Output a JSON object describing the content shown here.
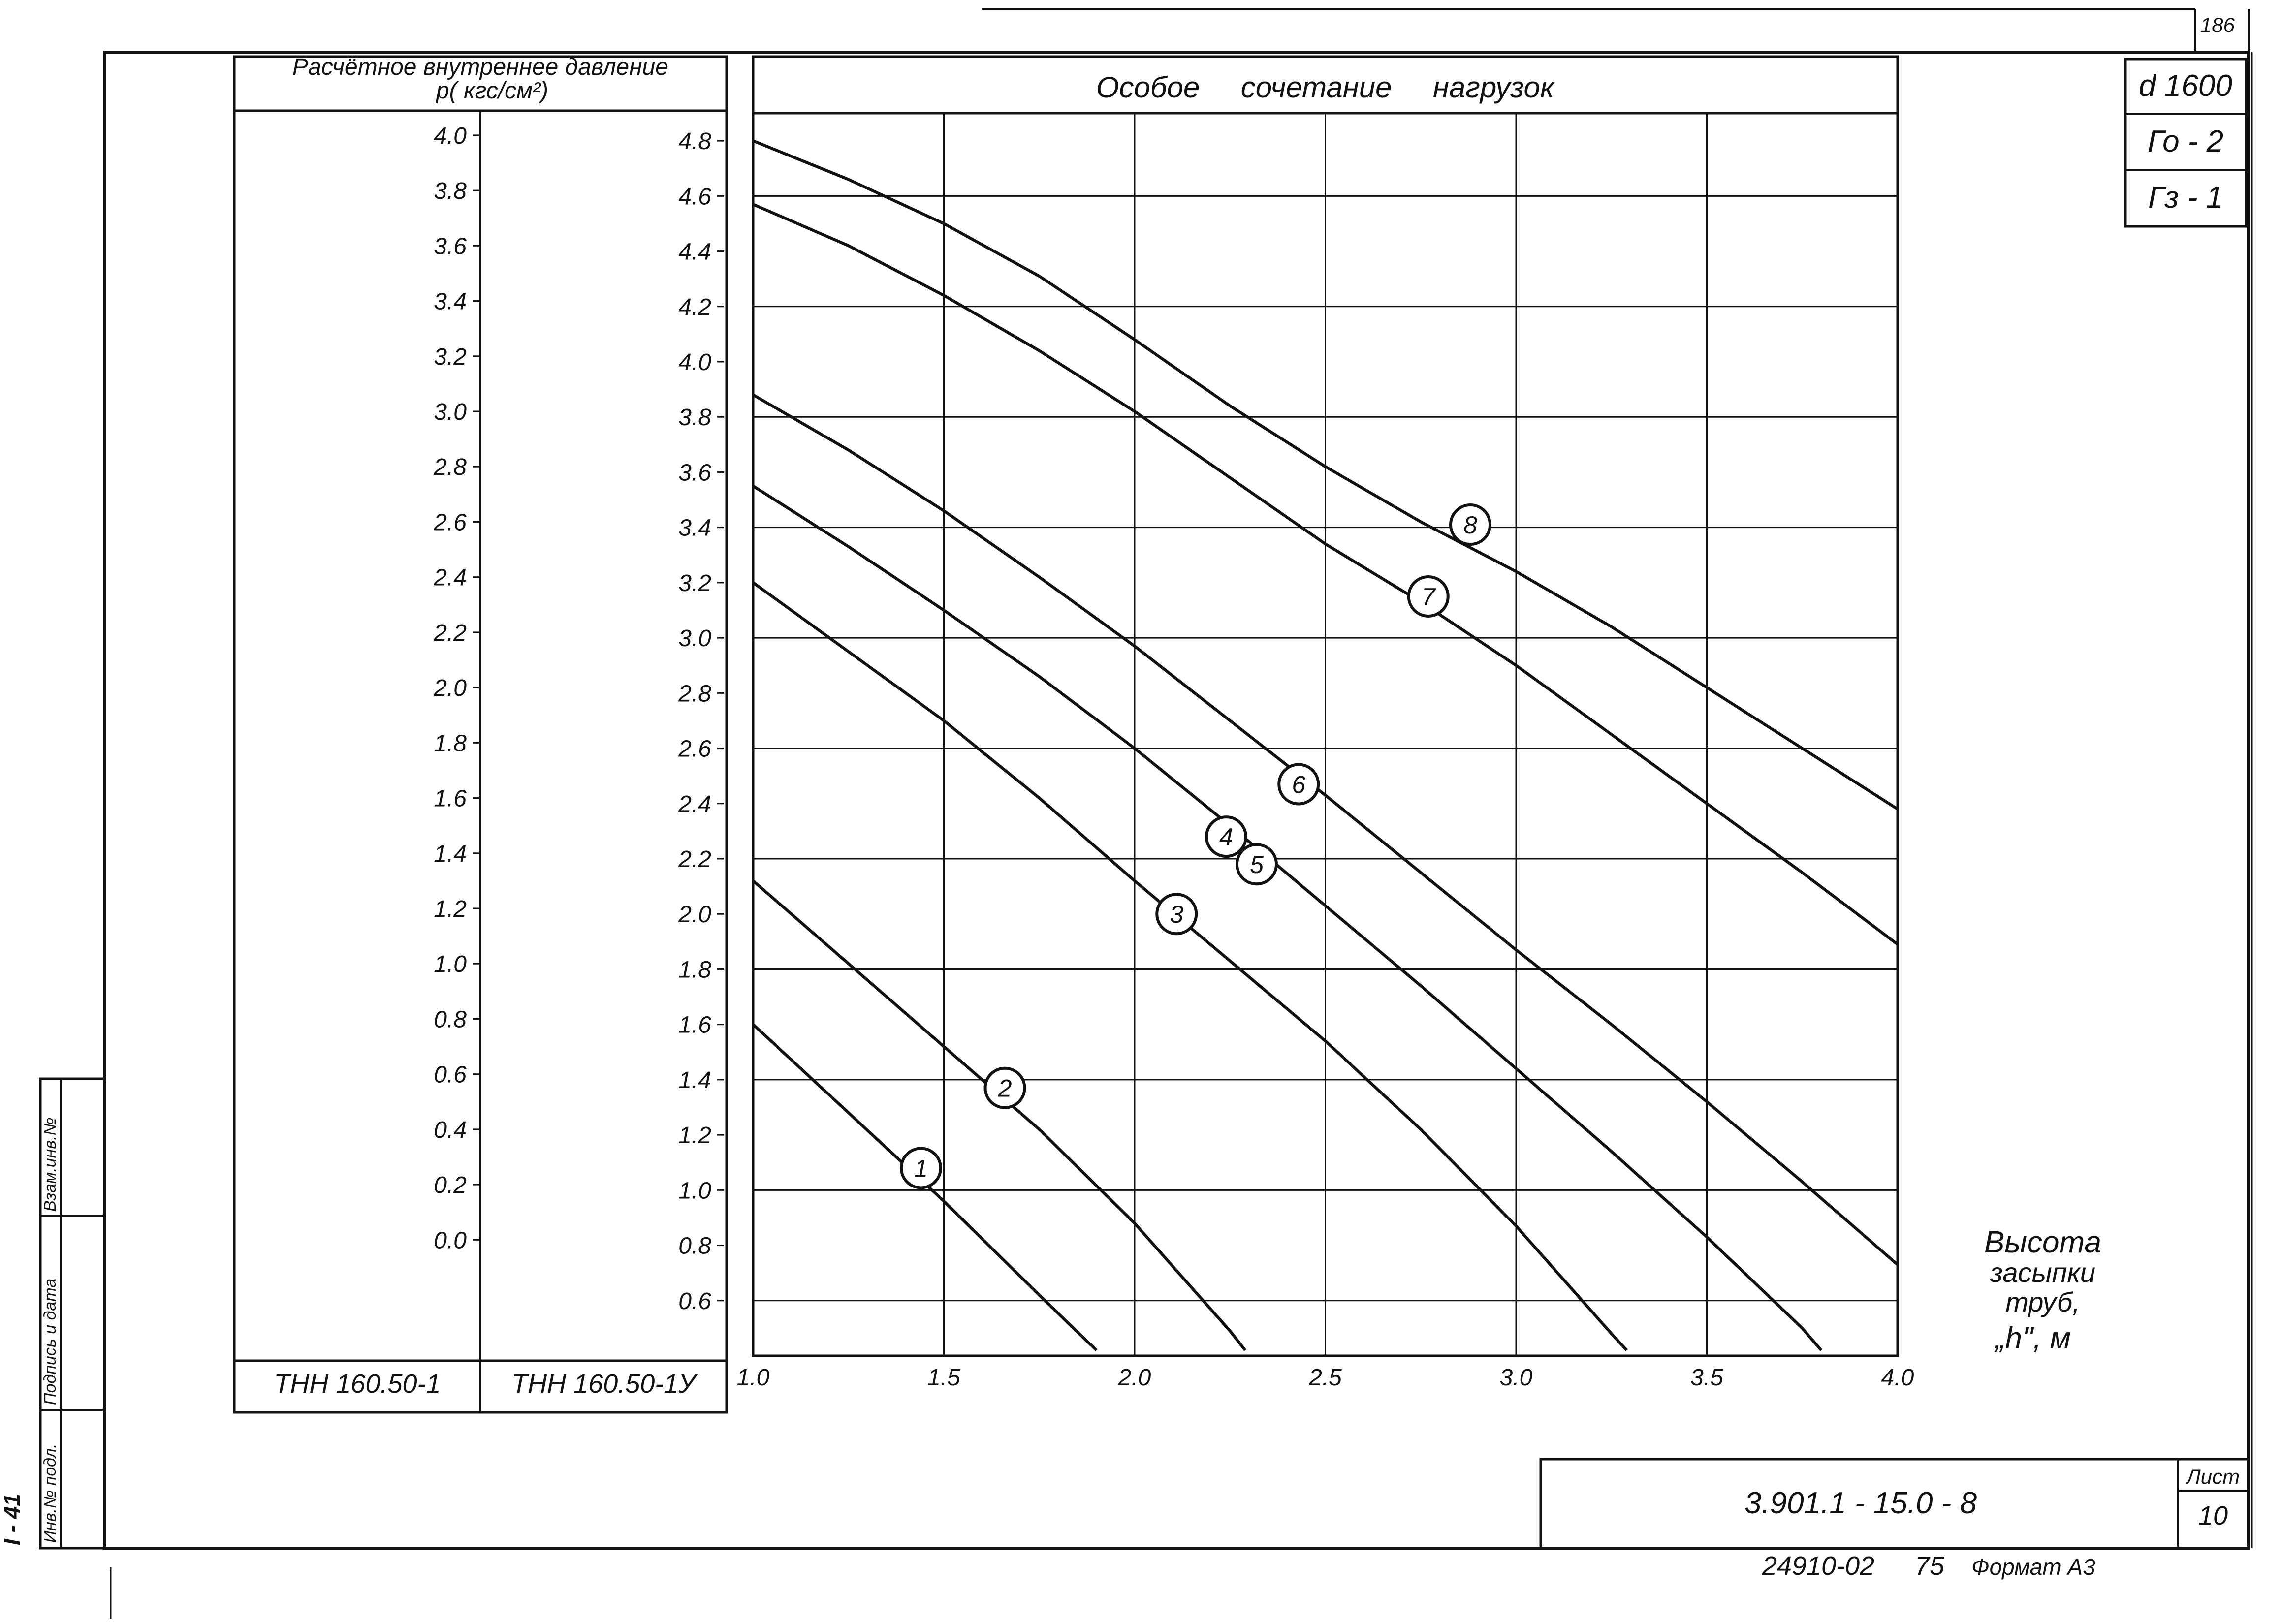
{
  "sheet": {
    "page_number": "186",
    "side_label": "I - 41",
    "badges": [
      "d 1600",
      "Го - 2",
      "Гз - 1"
    ],
    "stamp_cells": [
      "Инв.№ подл.",
      "Подпись и дата",
      "Взам.инв.№"
    ],
    "doc_code": "3.901.1 - 15.0 - 8",
    "sheet_label": "Лист",
    "sheet_number": "10",
    "footer": "24910-02",
    "footer_mark": "75",
    "format": "Формат А3"
  },
  "chart_data": {
    "type": "line",
    "title": "Особое     сочетание     нагрузок",
    "xlabel": [
      "Высота",
      "засыпки",
      "труб,",
      "„h\", м"
    ],
    "xlim": [
      1.0,
      4.0
    ],
    "x_ticks": [
      "1.0",
      "1.5",
      "2.0",
      "2.5",
      "3.0",
      "3.5",
      "4.0"
    ],
    "left_header": [
      "Расчётное  внутреннее   давление",
      "p( кгс/см²)"
    ],
    "ylim": [
      0.4,
      4.9
    ],
    "axis_col1": {
      "name": "ТНН 160.50-1",
      "ticks": [
        "4.0",
        "3.8",
        "3.6",
        "3.4",
        "3.2",
        "3.0",
        "2.8",
        "2.6",
        "2.4",
        "2.2",
        "2.0",
        "1.8",
        "1.6",
        "1.4",
        "1.2",
        "1.0",
        "0.8",
        "0.6",
        "0.4",
        "0.2",
        "0.0"
      ],
      "offset": 0.82
    },
    "axis_col2": {
      "name": "ТНН 160.50-1У",
      "ticks": [
        "4.8",
        "4.6",
        "4.4",
        "4.2",
        "4.0",
        "3.8",
        "3.6",
        "3.4",
        "3.2",
        "3.0",
        "2.8",
        "2.6",
        "2.4",
        "2.2",
        "2.0",
        "1.8",
        "1.6",
        "1.4",
        "1.2",
        "1.0",
        "0.8",
        "0.6"
      ],
      "offset": 0.0
    },
    "series": [
      {
        "name": "1",
        "label_at": [
          1.44,
          1.08
        ],
        "x": [
          1.0,
          1.25,
          1.5,
          1.75,
          1.9
        ],
        "y": [
          1.6,
          1.28,
          0.96,
          0.62,
          0.42
        ]
      },
      {
        "name": "2",
        "label_at": [
          1.66,
          1.37
        ],
        "x": [
          1.0,
          1.25,
          1.5,
          1.75,
          2.0,
          2.25,
          2.29
        ],
        "y": [
          2.12,
          1.82,
          1.52,
          1.22,
          0.88,
          0.49,
          0.42
        ]
      },
      {
        "name": "3",
        "label_at": [
          2.11,
          2.0
        ],
        "x": [
          1.0,
          1.25,
          1.5,
          1.75,
          2.0,
          2.25,
          2.5,
          2.75,
          3.0,
          3.25,
          3.29
        ],
        "y": [
          3.2,
          2.95,
          2.7,
          2.42,
          2.12,
          1.83,
          1.54,
          1.22,
          0.87,
          0.48,
          0.42
        ]
      },
      {
        "name": "4",
        "label_at": [
          2.24,
          2.28
        ],
        "x": [
          1.0,
          1.25,
          1.5,
          1.75,
          2.0,
          2.25,
          2.5,
          2.75,
          3.0,
          3.25,
          3.5,
          3.75,
          3.8
        ],
        "y": [
          3.55,
          3.33,
          3.1,
          2.86,
          2.6,
          2.32,
          2.03,
          1.74,
          1.44,
          1.14,
          0.83,
          0.5,
          0.42
        ]
      },
      {
        "name": "5",
        "label_at": [
          2.32,
          2.18
        ],
        "x": []
      },
      {
        "name": "6",
        "label_at": [
          2.43,
          2.47
        ],
        "x": [
          1.0,
          1.25,
          1.5,
          1.75,
          2.0,
          2.25,
          2.5,
          2.75,
          3.0,
          3.25,
          3.5,
          3.75,
          4.0
        ],
        "y": [
          3.88,
          3.68,
          3.46,
          3.22,
          2.97,
          2.7,
          2.43,
          2.15,
          1.87,
          1.6,
          1.32,
          1.03,
          0.73
        ]
      },
      {
        "name": "7",
        "label_at": [
          2.77,
          3.15
        ],
        "x": [
          1.0,
          1.25,
          1.5,
          1.75,
          2.0,
          2.25,
          2.5,
          2.75,
          3.0,
          3.25,
          3.5,
          3.75,
          4.0
        ],
        "y": [
          4.57,
          4.42,
          4.24,
          4.04,
          3.82,
          3.58,
          3.34,
          3.13,
          2.9,
          2.65,
          2.4,
          2.15,
          1.89
        ]
      },
      {
        "name": "8",
        "label_at": [
          2.88,
          3.41
        ],
        "x": [
          1.0,
          1.25,
          1.5,
          1.75,
          2.0,
          2.25,
          2.5,
          2.75,
          3.0,
          3.25,
          3.5,
          3.75,
          4.0
        ],
        "y": [
          4.8,
          4.66,
          4.5,
          4.31,
          4.08,
          3.84,
          3.62,
          3.42,
          3.24,
          3.04,
          2.82,
          2.6,
          2.38
        ]
      }
    ],
    "grid": true
  }
}
